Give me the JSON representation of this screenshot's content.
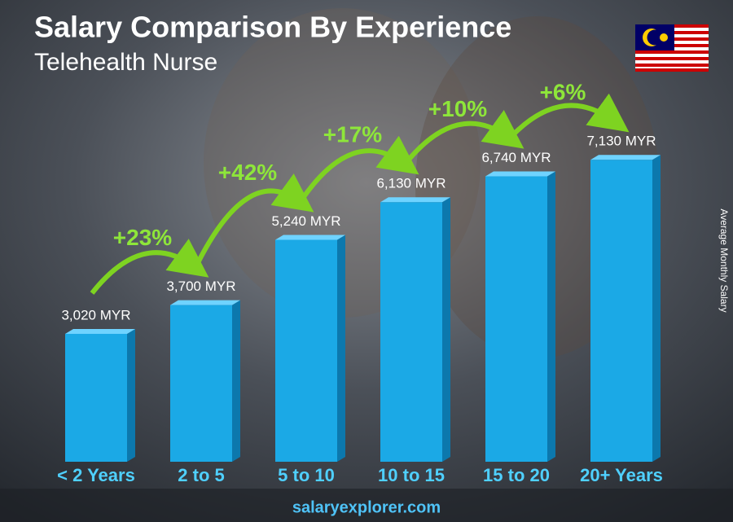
{
  "chart_data": {
    "type": "bar",
    "title": "Salary Comparison By Experience",
    "subtitle": "Telehealth Nurse",
    "y_axis_label": "Average Monthly Salary",
    "categories": [
      "< 2 Years",
      "2 to 5",
      "5 to 10",
      "10 to 15",
      "15 to 20",
      "20+ Years"
    ],
    "values": [
      3020,
      3700,
      5240,
      6130,
      6740,
      7130
    ],
    "value_labels": [
      "3,020 MYR",
      "3,700 MYR",
      "5,240 MYR",
      "6,130 MYR",
      "6,740 MYR",
      "7,130 MYR"
    ],
    "changes": [
      "+23%",
      "+42%",
      "+17%",
      "+10%",
      "+6%"
    ],
    "color": "#1ba9e6",
    "source": "salaryexplorer.com"
  }
}
